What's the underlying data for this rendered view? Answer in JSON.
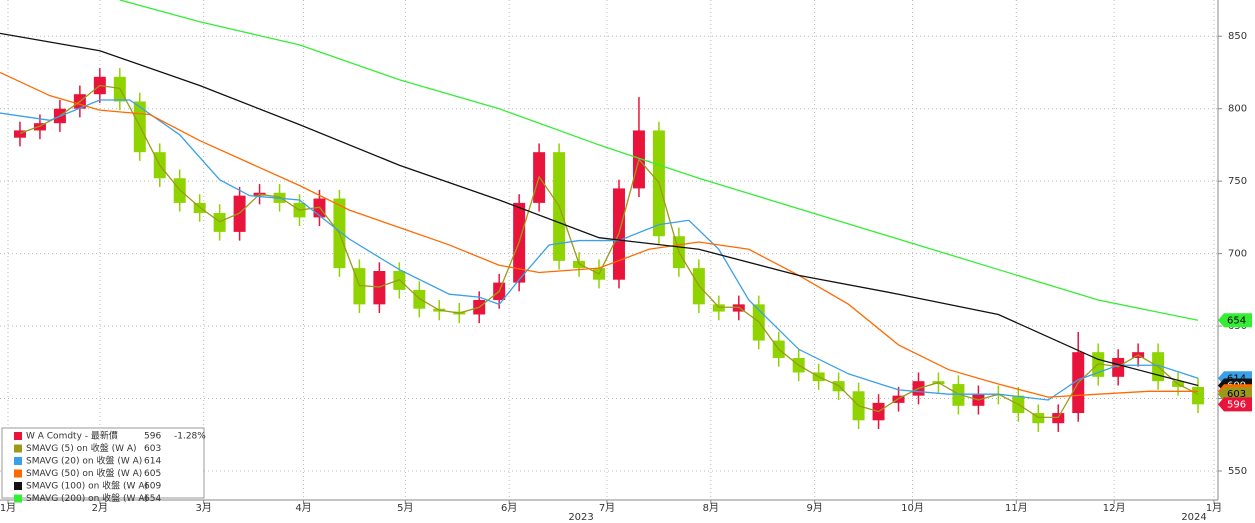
{
  "chart_data": {
    "type": "candlestick",
    "x": [
      1,
      2,
      3,
      4,
      5,
      6,
      7,
      8,
      9,
      10,
      11,
      12,
      13,
      14,
      15,
      16,
      17,
      18,
      19,
      20,
      21,
      22,
      23,
      24,
      25,
      26,
      27,
      28,
      29,
      30,
      31,
      32,
      33,
      34,
      35,
      36,
      37,
      38,
      39,
      40,
      41,
      42,
      43,
      44,
      45,
      46,
      47,
      48,
      49,
      50,
      51,
      52,
      53,
      54,
      55,
      56,
      57,
      58,
      59,
      60
    ],
    "open": [
      780,
      785,
      790,
      800,
      810,
      822,
      805,
      770,
      752,
      735,
      728,
      715,
      740,
      742,
      735,
      725,
      738,
      690,
      665,
      688,
      675,
      662,
      660,
      658,
      668,
      680,
      735,
      770,
      695,
      690,
      682,
      745,
      785,
      712,
      690,
      665,
      660,
      665,
      640,
      628,
      618,
      612,
      605,
      585,
      597,
      602,
      612,
      610,
      595,
      603,
      602,
      590,
      583,
      590,
      632,
      615,
      628,
      632,
      612,
      608
    ],
    "high": [
      791,
      796,
      806,
      816,
      828,
      828,
      811,
      776,
      758,
      741,
      734,
      746,
      748,
      748,
      741,
      744,
      744,
      696,
      694,
      694,
      681,
      668,
      666,
      674,
      686,
      741,
      776,
      776,
      701,
      696,
      751,
      808,
      791,
      718,
      696,
      671,
      671,
      671,
      646,
      634,
      624,
      618,
      611,
      603,
      608,
      618,
      618,
      616,
      609,
      609,
      608,
      596,
      596,
      646,
      638,
      634,
      638,
      638,
      618,
      614
    ],
    "low": [
      774,
      779,
      784,
      794,
      804,
      799,
      764,
      746,
      729,
      722,
      709,
      709,
      734,
      729,
      719,
      719,
      684,
      659,
      659,
      669,
      656,
      654,
      652,
      652,
      662,
      674,
      729,
      689,
      684,
      676,
      676,
      739,
      706,
      684,
      659,
      654,
      654,
      634,
      622,
      612,
      606,
      599,
      579,
      579,
      591,
      596,
      604,
      589,
      589,
      596,
      584,
      577,
      577,
      584,
      609,
      609,
      622,
      606,
      602,
      590
    ],
    "close": [
      785,
      790,
      800,
      810,
      822,
      805,
      770,
      752,
      735,
      728,
      715,
      740,
      742,
      735,
      725,
      738,
      690,
      665,
      688,
      675,
      662,
      660,
      658,
      668,
      680,
      735,
      770,
      695,
      690,
      682,
      745,
      785,
      712,
      690,
      665,
      660,
      665,
      640,
      628,
      618,
      612,
      605,
      585,
      597,
      602,
      612,
      610,
      595,
      603,
      602,
      590,
      583,
      590,
      632,
      615,
      628,
      632,
      612,
      608,
      596
    ],
    "up_color": "#e8143c",
    "down_color": "#8fd400",
    "series": [
      {
        "name": "SMAVG (5)  on 收盤 (W A)",
        "color": "#9a9a1a",
        "last": "603",
        "x": [
          1,
          2,
          3,
          4,
          5,
          6,
          7,
          8,
          9,
          10,
          11,
          12,
          13,
          14,
          15,
          16,
          17,
          18,
          19,
          20,
          21,
          22,
          23,
          24,
          25,
          26,
          27,
          28,
          29,
          30,
          31,
          32,
          33,
          34,
          35,
          36,
          37,
          38,
          39,
          40,
          41,
          42,
          43,
          44,
          45,
          46,
          47,
          48,
          49,
          50,
          51,
          52,
          53,
          54,
          55,
          56,
          57,
          58,
          59,
          60
        ],
        "values": [
          783,
          788,
          795,
          805,
          816,
          814,
          788,
          761,
          744,
          732,
          722,
          728,
          741,
          739,
          730,
          732,
          714,
          678,
          677,
          682,
          669,
          661,
          659,
          663,
          674,
          708,
          753,
          733,
          693,
          686,
          714,
          765,
          749,
          701,
          678,
          663,
          663,
          653,
          634,
          623,
          615,
          609,
          595,
          591,
          600,
          607,
          611,
          603,
          599,
          603,
          596,
          587,
          587,
          611,
          624,
          622,
          630,
          622,
          610,
          603
        ]
      },
      {
        "name": "SMAVG (20)  on 收盤 (W A)",
        "color": "#3aa0e8",
        "last": "614",
        "x": [
          0,
          2.5,
          5,
          6.5,
          9,
          11,
          12.5,
          15,
          17.5,
          20,
          22.5,
          24,
          25,
          26,
          27.5,
          29,
          31,
          33,
          34.5,
          36,
          37.5,
          40,
          42.5,
          45,
          47.5,
          50,
          52.5,
          54,
          56,
          58,
          60
        ],
        "values": [
          797,
          792,
          806,
          806,
          782,
          751,
          740,
          737,
          710,
          689,
          672,
          670,
          665,
          682,
          706,
          709,
          709,
          720,
          723,
          703,
          668,
          634,
          617,
          606,
          603,
          603,
          599,
          613,
          623,
          623,
          614
        ]
      },
      {
        "name": "SMAVG (50)  on 收盤 (W A)",
        "color": "#ff6a00",
        "last": "605",
        "x": [
          0,
          2.5,
          5,
          7.5,
          10,
          15,
          17.5,
          20,
          22.5,
          25,
          27,
          30,
          32.5,
          35,
          37.5,
          40,
          42.5,
          45,
          47.5,
          50,
          52.5,
          55,
          57.5,
          60
        ],
        "values": [
          825,
          809,
          799,
          796,
          778,
          747,
          730,
          718,
          706,
          692,
          687,
          690,
          703,
          708,
          703,
          685,
          665,
          637,
          620,
          610,
          601,
          603,
          605,
          605
        ]
      },
      {
        "name": "SMAVG (100)  on 收盤 (W A)",
        "color": "#111111",
        "last": "609",
        "x": [
          0,
          5,
          10,
          15,
          20,
          25,
          30,
          35,
          40,
          45,
          50,
          55,
          60
        ],
        "values": [
          852,
          840,
          816,
          789,
          761,
          737,
          711,
          703,
          685,
          672,
          658,
          627,
          609
        ]
      },
      {
        "name": "SMAVG (200)  on 收盤 (W A)",
        "color": "#33ee33",
        "last": "654",
        "x": [
          6,
          10,
          15,
          20,
          25,
          30,
          35,
          40,
          45,
          50,
          55,
          60
        ],
        "values": [
          875,
          860,
          844,
          820,
          800,
          775,
          752,
          731,
          710,
          689,
          668,
          654
        ]
      }
    ],
    "legend_title": "W A Comdty - 最新價",
    "last": 596,
    "change": "-1.28%",
    "xlim": [
      0,
      61
    ],
    "ylim": [
      530,
      875
    ],
    "yticks": [
      550,
      600,
      650,
      700,
      750,
      800,
      850
    ],
    "xticks": [
      {
        "value": 0.4,
        "label": "1月"
      },
      {
        "value": 5,
        "label": "2月"
      },
      {
        "value": 10.2,
        "label": "3月"
      },
      {
        "value": 15.2,
        "label": "4月"
      },
      {
        "value": 20.3,
        "label": "5月"
      },
      {
        "value": 25.5,
        "label": "6月"
      },
      {
        "value": 30.4,
        "label": "7月"
      },
      {
        "value": 35.6,
        "label": "8月"
      },
      {
        "value": 40.8,
        "label": "9月"
      },
      {
        "value": 45.7,
        "label": "10月"
      },
      {
        "value": 50.9,
        "label": "11月"
      },
      {
        "value": 55.8,
        "label": "12月"
      },
      {
        "value": 60.8,
        "label": "1月"
      }
    ],
    "year_labels": [
      {
        "value": 29.1,
        "label": "2023"
      },
      {
        "value": 59.8,
        "label": "2024"
      }
    ],
    "grid": true,
    "legend_position": "lower left"
  }
}
